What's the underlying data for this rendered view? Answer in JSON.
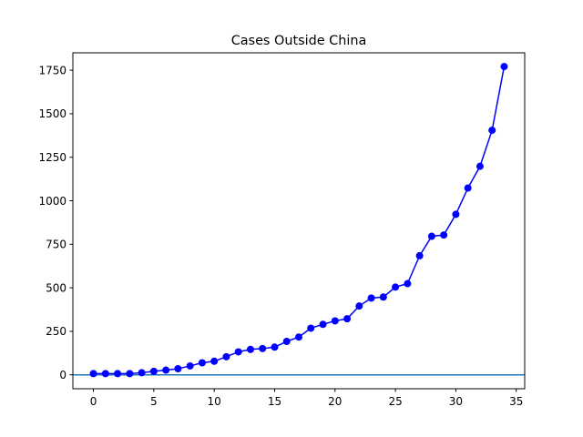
{
  "chart_data": {
    "type": "line",
    "title": "Cases Outside China",
    "xlabel": "",
    "ylabel": "",
    "x": [
      0,
      1,
      2,
      3,
      4,
      5,
      6,
      7,
      8,
      9,
      10,
      11,
      12,
      13,
      14,
      15,
      16,
      17,
      18,
      19,
      20,
      21,
      22,
      23,
      24,
      25,
      26,
      27,
      28,
      29,
      30,
      31,
      32,
      33,
      34
    ],
    "series": [
      {
        "values": [
          7,
          7,
          7,
          7,
          12,
          20,
          27,
          35,
          51,
          69,
          78,
          104,
          132,
          146,
          151,
          159,
          192,
          217,
          268,
          290,
          310,
          322,
          395,
          441,
          447,
          504,
          524,
          684,
          796,
          803,
          922,
          1073,
          1198,
          1405,
          1771
        ]
      }
    ],
    "xlim": [
      -1.7,
      35.7
    ],
    "ylim": [
      -80,
      1850
    ],
    "xticks": [
      0,
      5,
      10,
      15,
      20,
      25,
      30,
      35
    ],
    "yticks": [
      0,
      250,
      500,
      750,
      1000,
      1250,
      1500,
      1750
    ],
    "hline": 0,
    "grid": false,
    "colors": {
      "series": "#0000ff",
      "hline": "#1f77b4",
      "axis": "#000000"
    }
  }
}
